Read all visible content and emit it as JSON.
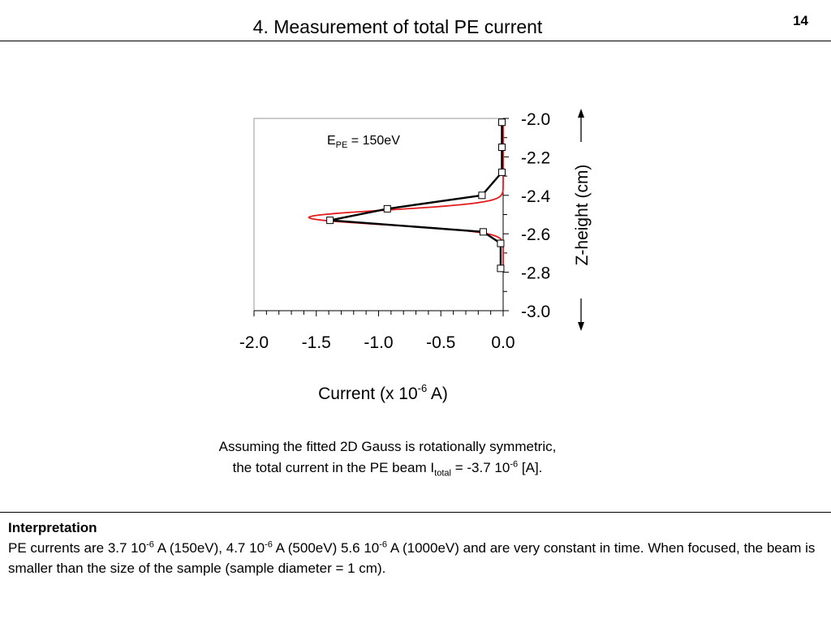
{
  "slide": {
    "title": "4. Measurement of total PE current",
    "page_number": "14"
  },
  "caption": {
    "line1": "Assuming the fitted 2D Gauss is rotationally symmetric,",
    "line2_prefix": "the total current in the PE beam I",
    "line2_sub": "total",
    "line2_mid": " = -3.7 10",
    "line2_sup": "-6",
    "line2_suffix": " [A]."
  },
  "interpretation": {
    "heading": "Interpretation",
    "p1": "PE currents are 3.7 10",
    "p1_sup": "-6",
    "p2": " A (150eV), 4.7 10",
    "p2_sup": "-6",
    "p3": " A (500eV) 5.6 10",
    "p3_sup": "-6",
    "p4": " A (1000eV) and are very constant in time. When focused, the beam is smaller than the size of the sample (sample diameter = 1 cm)."
  },
  "chart_data": {
    "type": "line",
    "annotation": {
      "main": "E",
      "sub": "PE",
      "rest": " = 150eV"
    },
    "xlabel": {
      "main": "Current (x 10",
      "sup": "-6",
      "rest": " A)"
    },
    "ylabel": "Z-height (cm)",
    "xlim": [
      -2.0,
      0.0
    ],
    "ylim": [
      -3.0,
      -2.0
    ],
    "x_ticks": [
      "-2.0",
      "-1.5",
      "-1.0",
      "-0.5",
      "0.0"
    ],
    "y_ticks": [
      "-2.0",
      "-2.2",
      "-2.4",
      "-2.6",
      "-2.8",
      "-3.0"
    ],
    "grid": false,
    "series": [
      {
        "kind": "measured",
        "color": "#000000",
        "marker": "square",
        "points": [
          [
            -0.01,
            -2.02
          ],
          [
            -0.01,
            -2.15
          ],
          [
            -0.01,
            -2.28
          ],
          [
            -0.17,
            -2.4
          ],
          [
            -0.93,
            -2.47
          ],
          [
            -1.39,
            -2.53
          ],
          [
            -0.16,
            -2.59
          ],
          [
            -0.02,
            -2.65
          ],
          [
            -0.02,
            -2.78
          ]
        ]
      },
      {
        "kind": "gauss-fit",
        "color": "#e41a1c",
        "gauss": {
          "amplitude": -1.56,
          "center": -2.515,
          "sigma": 0.038
        },
        "z_range": [
          -2.78,
          -2.02
        ]
      }
    ]
  }
}
